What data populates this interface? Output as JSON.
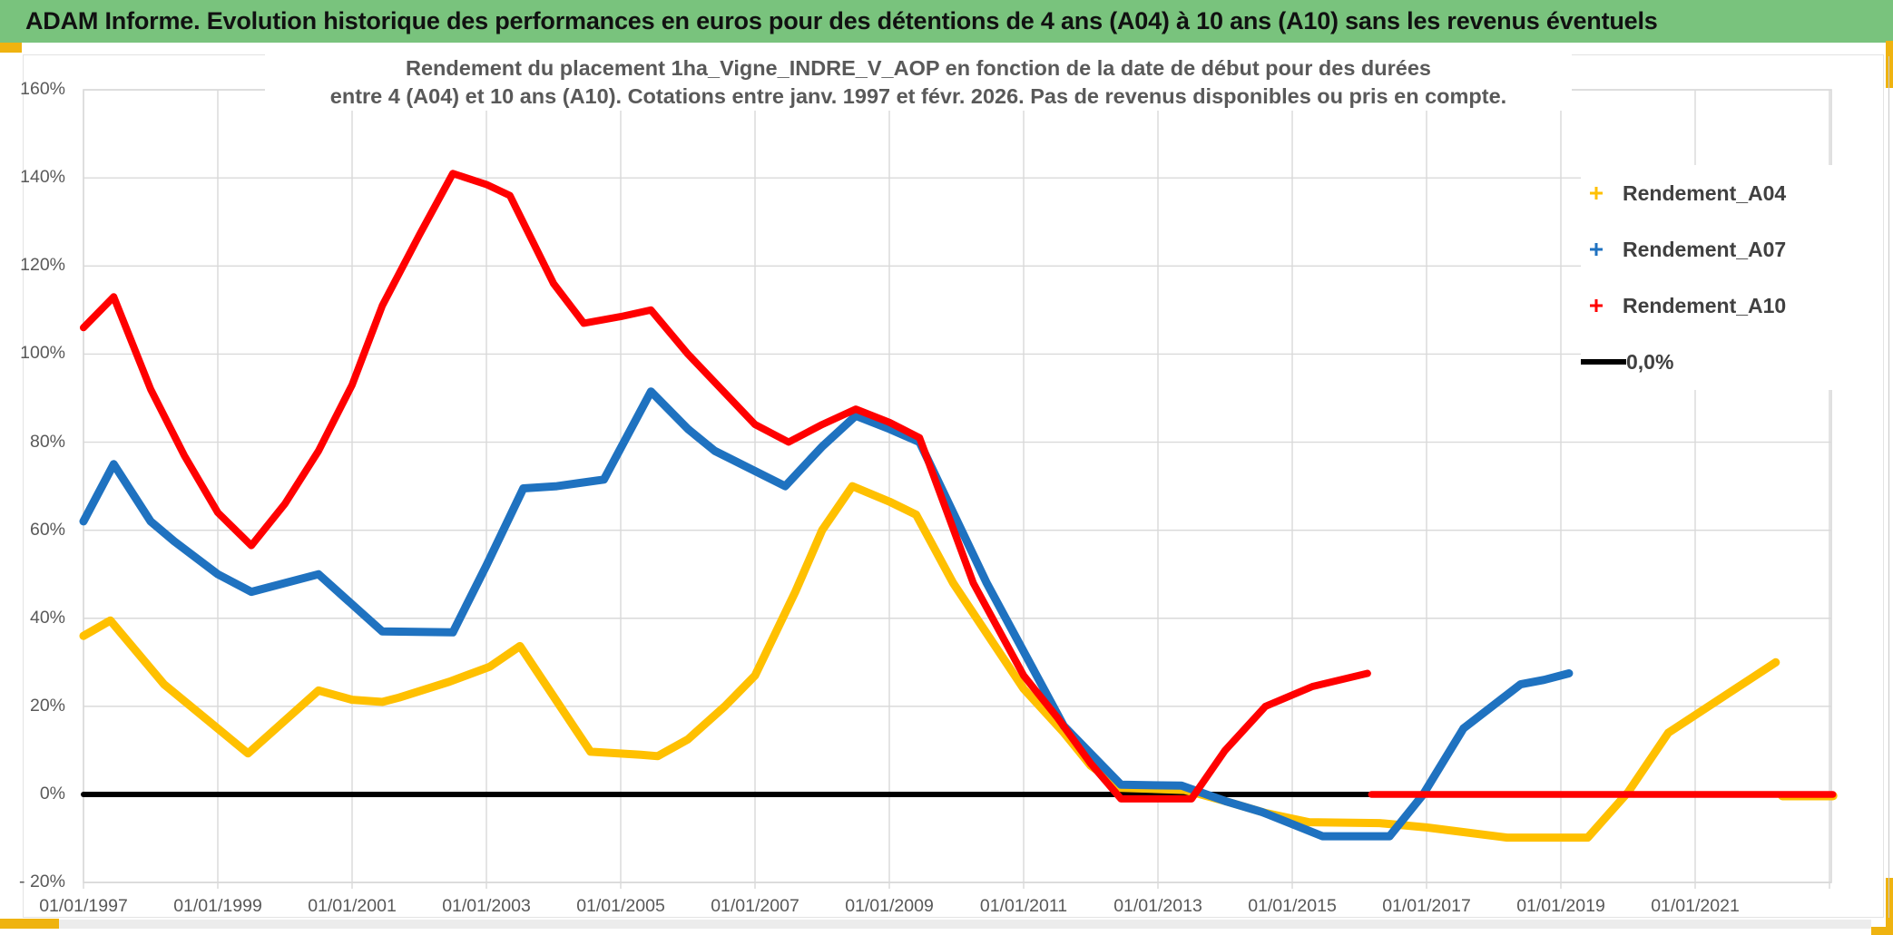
{
  "header": {
    "title": "ADAM Informe. Evolution historique des performances en euros pour des détentions de 4 ans (A04) à 10 ans (A10) sans les revenus éventuels",
    "bg_color": "#79C37D",
    "accent_gold": "#EFB310"
  },
  "chart": {
    "title_line1": "Rendement du placement 1ha_Vigne_INDRE_V_AOP en fonction de la date de début pour des durées",
    "title_line2": "entre 4 (A04) et 10 ans (A10). Cotations entre janv. 1997 et févr. 2026. Pas de revenus disponibles ou pris en compte.",
    "legend": [
      {
        "label": "Rendement_A04",
        "color": "#FFC000",
        "marker": "plus"
      },
      {
        "label": "Rendement_A07",
        "color": "#1F72C0",
        "marker": "plus"
      },
      {
        "label": "Rendement_A10",
        "color": "#FF0000",
        "marker": "plus"
      },
      {
        "label": "0,0%",
        "color": "#000000",
        "marker": "line"
      }
    ],
    "y_axis_labels": [
      "160%",
      "140%",
      "120%",
      "100%",
      "80%",
      "60%",
      "40%",
      "20%",
      "0%",
      "- 20%"
    ],
    "x_axis_labels": [
      "01/01/1997",
      "01/01/1999",
      "01/01/2001",
      "01/01/2003",
      "01/01/2005",
      "01/01/2007",
      "01/01/2009",
      "01/01/2011",
      "01/01/2013",
      "01/01/2015",
      "01/01/2017",
      "01/01/2019",
      "01/01/2021"
    ]
  },
  "chart_data": {
    "type": "line",
    "title": "Rendement du placement 1ha_Vigne_INDRE_V_AOP en fonction de la date de début pour des durées entre 4 (A04) et 10 ans (A10). Cotations entre janv. 1997 et févr. 2026. Pas de revenus disponibles ou pris en compte.",
    "x_unit": "decimal_year_of_start_date",
    "x_range": [
      1997.0,
      2023.05
    ],
    "ylim": [
      -20,
      160
    ],
    "y_ticks_percent": [
      160,
      140,
      120,
      100,
      80,
      60,
      40,
      20,
      0,
      -20
    ],
    "x_gridline_years": [
      1997,
      1999,
      2001,
      2003,
      2005,
      2007,
      2009,
      2011,
      2013,
      2015,
      2017,
      2019,
      2021,
      2023
    ],
    "x_tick_label_years": [
      1997,
      1999,
      2001,
      2003,
      2005,
      2007,
      2009,
      2011,
      2013,
      2015,
      2017,
      2019,
      2021
    ],
    "grid": true,
    "legend_position": "right",
    "series": [
      {
        "name": "Rendement_A04",
        "color": "#FFC000",
        "width": 9,
        "points": [
          [
            1997.0,
            36
          ],
          [
            1997.4,
            39.5
          ],
          [
            1998.2,
            25
          ],
          [
            1999.45,
            9.3
          ],
          [
            2000.5,
            23.6
          ],
          [
            2001.0,
            21.5
          ],
          [
            2001.45,
            21
          ],
          [
            2001.7,
            22
          ],
          [
            2002.45,
            25.6
          ],
          [
            2003.05,
            29
          ],
          [
            2003.5,
            33.7
          ],
          [
            2004.3,
            15.4
          ],
          [
            2004.55,
            9.7
          ],
          [
            2005.3,
            9
          ],
          [
            2005.55,
            8.7
          ],
          [
            2006.0,
            12.5
          ],
          [
            2006.55,
            20
          ],
          [
            2007.0,
            27
          ],
          [
            2007.6,
            46
          ],
          [
            2008.0,
            60
          ],
          [
            2008.45,
            70
          ],
          [
            2009.0,
            66.5
          ],
          [
            2009.4,
            63.5
          ],
          [
            2009.95,
            48
          ],
          [
            2011.0,
            24
          ],
          [
            2011.6,
            14
          ],
          [
            2012.0,
            6.5
          ],
          [
            2012.45,
            1.5
          ],
          [
            2013.4,
            1
          ],
          [
            2014.0,
            -1.5
          ],
          [
            2014.6,
            -4.2
          ],
          [
            2015.25,
            -6.3
          ],
          [
            2016.3,
            -6.5
          ],
          [
            2017.0,
            -7.5
          ],
          [
            2018.2,
            -9.8
          ],
          [
            2019.4,
            -9.8
          ],
          [
            2020.0,
            0.5
          ],
          [
            2020.6,
            14
          ],
          [
            2021.3,
            21
          ],
          [
            2021.8,
            26
          ],
          [
            2022.2,
            30
          ]
        ],
        "zero_tail": [
          2022.3,
          2023.05
        ]
      },
      {
        "name": "Rendement_A07",
        "color": "#1F72C0",
        "width": 9,
        "points": [
          [
            1997.0,
            62
          ],
          [
            1997.45,
            75
          ],
          [
            1998.0,
            62
          ],
          [
            1998.35,
            57.5
          ],
          [
            1999.0,
            50
          ],
          [
            1999.5,
            46
          ],
          [
            2000.5,
            50
          ],
          [
            2001.45,
            37
          ],
          [
            2002.5,
            36.8
          ],
          [
            2003.0,
            52
          ],
          [
            2003.55,
            69.5
          ],
          [
            2004.05,
            70
          ],
          [
            2004.75,
            71.5
          ],
          [
            2005.45,
            91.5
          ],
          [
            2006.0,
            83
          ],
          [
            2006.4,
            78
          ],
          [
            2007.45,
            70
          ],
          [
            2008.0,
            79
          ],
          [
            2008.5,
            86
          ],
          [
            2009.0,
            83
          ],
          [
            2009.45,
            80
          ],
          [
            2010.45,
            48
          ],
          [
            2011.6,
            15.5
          ],
          [
            2012.45,
            2.2
          ],
          [
            2013.35,
            2
          ],
          [
            2014.0,
            -1.5
          ],
          [
            2014.55,
            -4
          ],
          [
            2015.45,
            -9.5
          ],
          [
            2016.45,
            -9.5
          ],
          [
            2016.95,
            0
          ],
          [
            2017.55,
            15
          ],
          [
            2018.4,
            25
          ],
          [
            2018.75,
            26
          ],
          [
            2019.12,
            27.5
          ]
        ],
        "zero_tail": null
      },
      {
        "name": "Rendement_A10",
        "color": "#FF0000",
        "width": 8,
        "points": [
          [
            1997.0,
            106
          ],
          [
            1997.45,
            113
          ],
          [
            1998.0,
            92
          ],
          [
            1998.5,
            77
          ],
          [
            1999.0,
            64
          ],
          [
            1999.5,
            56.5
          ],
          [
            2000.0,
            66
          ],
          [
            2000.5,
            78
          ],
          [
            2001.0,
            93
          ],
          [
            2001.45,
            111
          ],
          [
            2002.0,
            127
          ],
          [
            2002.5,
            141
          ],
          [
            2003.0,
            138.5
          ],
          [
            2003.35,
            136
          ],
          [
            2004.0,
            116
          ],
          [
            2004.45,
            107
          ],
          [
            2005.0,
            108.5
          ],
          [
            2005.45,
            110
          ],
          [
            2006.0,
            100
          ],
          [
            2006.5,
            92
          ],
          [
            2007.0,
            84
          ],
          [
            2007.5,
            80
          ],
          [
            2008.0,
            84
          ],
          [
            2008.5,
            87.5
          ],
          [
            2009.0,
            84.5
          ],
          [
            2009.45,
            81
          ],
          [
            2010.25,
            48
          ],
          [
            2011.0,
            27
          ],
          [
            2011.5,
            17.5
          ],
          [
            2012.0,
            7
          ],
          [
            2012.45,
            -1
          ],
          [
            2013.5,
            -1
          ],
          [
            2014.0,
            10
          ],
          [
            2014.6,
            20
          ],
          [
            2015.3,
            24.5
          ],
          [
            2016.12,
            27.5
          ]
        ],
        "zero_tail": [
          2016.18,
          2023.05
        ]
      },
      {
        "name": "0,0%",
        "color": "#000000",
        "width": 6,
        "points": [
          [
            1997.0,
            0
          ],
          [
            2016.18,
            0
          ]
        ],
        "zero_tail": null
      }
    ]
  },
  "layout_colors": {
    "gridline": "#D9D9D9",
    "plot_border": "#D9D9D9",
    "axis_text": "#595959"
  }
}
